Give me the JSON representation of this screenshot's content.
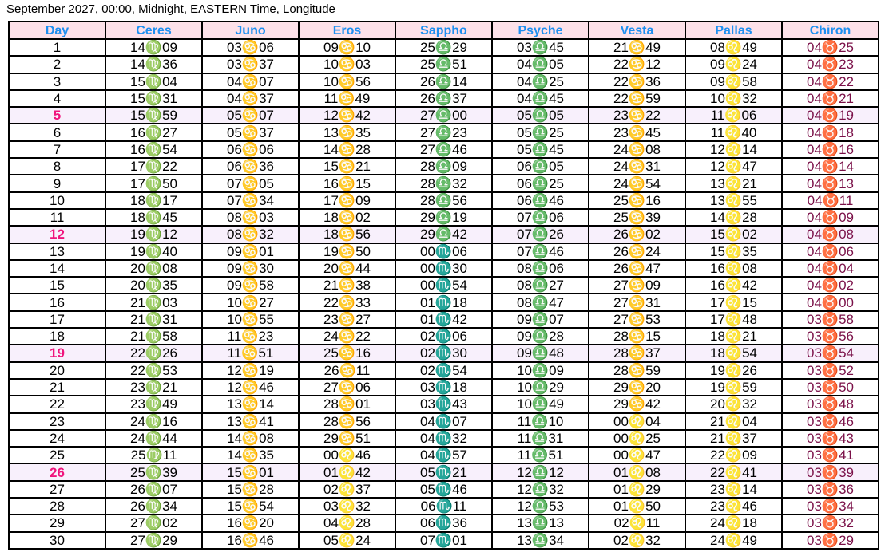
{
  "title": "September 2027, 00:00,  Midnight, EASTERN Time,  Longitude",
  "colors": {
    "header_bg": "#fde1e9",
    "header_text": "#1e8ff0",
    "highlight_row_bg": "#f8f0fc",
    "highlight_day": "#f0147c",
    "chiron_text": "#7a1048"
  },
  "table": {
    "headers": [
      "Day",
      "Ceres",
      "Juno",
      "Eros",
      "Sappho",
      "Psyche",
      "Vesta",
      "Pallas",
      "Chiron"
    ],
    "highlighted_days": [
      "5",
      "12",
      "19",
      "26"
    ],
    "rows": [
      [
        "1",
        "14♍09",
        "03♋06",
        "09♋10",
        "25♎29",
        "03♎45",
        "21♋49",
        "08♌49",
        "04♉25"
      ],
      [
        "2",
        "14♍36",
        "03♋37",
        "10♋03",
        "25♎51",
        "04♎05",
        "22♋12",
        "09♌24",
        "04♉23"
      ],
      [
        "3",
        "15♍04",
        "04♋07",
        "10♋56",
        "26♎14",
        "04♎25",
        "22♋36",
        "09♌58",
        "04♉22"
      ],
      [
        "4",
        "15♍31",
        "04♋37",
        "11♋49",
        "26♎37",
        "04♎45",
        "22♋59",
        "10♌32",
        "04♉21"
      ],
      [
        "5",
        "15♍59",
        "05♋07",
        "12♋42",
        "27♎00",
        "05♎05",
        "23♋22",
        "11♌06",
        "04♉19"
      ],
      [
        "6",
        "16♍27",
        "05♋37",
        "13♋35",
        "27♎23",
        "05♎25",
        "23♋45",
        "11♌40",
        "04♉18"
      ],
      [
        "7",
        "16♍54",
        "06♋06",
        "14♋28",
        "27♎46",
        "05♎45",
        "24♋08",
        "12♌14",
        "04♉16"
      ],
      [
        "8",
        "17♍22",
        "06♋36",
        "15♋21",
        "28♎09",
        "06♎05",
        "24♋31",
        "12♌47",
        "04♉14"
      ],
      [
        "9",
        "17♍50",
        "07♋05",
        "16♋15",
        "28♎32",
        "06♎25",
        "24♋54",
        "13♌21",
        "04♉13"
      ],
      [
        "10",
        "18♍17",
        "07♋34",
        "17♋09",
        "28♎56",
        "06♎46",
        "25♋16",
        "13♌55",
        "04♉11"
      ],
      [
        "11",
        "18♍45",
        "08♋03",
        "18♋02",
        "29♎19",
        "07♎06",
        "25♋39",
        "14♌28",
        "04♉09"
      ],
      [
        "12",
        "19♍12",
        "08♋32",
        "18♋56",
        "29♎42",
        "07♎26",
        "26♋02",
        "15♌02",
        "04♉08"
      ],
      [
        "13",
        "19♍40",
        "09♋01",
        "19♋50",
        "00♏06",
        "07♎46",
        "26♋24",
        "15♌35",
        "04♉06"
      ],
      [
        "14",
        "20♍08",
        "09♋30",
        "20♋44",
        "00♏30",
        "08♎06",
        "26♋47",
        "16♌08",
        "04♉04"
      ],
      [
        "15",
        "20♍35",
        "09♋58",
        "21♋38",
        "00♏54",
        "08♎27",
        "27♋09",
        "16♌42",
        "04♉02"
      ],
      [
        "16",
        "21♍03",
        "10♋27",
        "22♋33",
        "01♏18",
        "08♎47",
        "27♋31",
        "17♌15",
        "04♉00"
      ],
      [
        "17",
        "21♍31",
        "10♋55",
        "23♋27",
        "01♏42",
        "09♎07",
        "27♋53",
        "17♌48",
        "03♉58"
      ],
      [
        "18",
        "21♍58",
        "11♋23",
        "24♋22",
        "02♏06",
        "09♎28",
        "28♋15",
        "18♌21",
        "03♉56"
      ],
      [
        "19",
        "22♍26",
        "11♋51",
        "25♋16",
        "02♏30",
        "09♎48",
        "28♋37",
        "18♌54",
        "03♉54"
      ],
      [
        "20",
        "22♍53",
        "12♋19",
        "26♋11",
        "02♏54",
        "10♎09",
        "28♋59",
        "19♌26",
        "03♉52"
      ],
      [
        "21",
        "23♍21",
        "12♋46",
        "27♋06",
        "03♏18",
        "10♎29",
        "29♋20",
        "19♌59",
        "03♉50"
      ],
      [
        "22",
        "23♍49",
        "13♋14",
        "28♋01",
        "03♏43",
        "10♎49",
        "29♋42",
        "20♌32",
        "03♉48"
      ],
      [
        "23",
        "24♍16",
        "13♋41",
        "28♋56",
        "04♏07",
        "11♎10",
        "00♌04",
        "21♌04",
        "03♉46"
      ],
      [
        "24",
        "24♍44",
        "14♋08",
        "29♋51",
        "04♏32",
        "11♎31",
        "00♌25",
        "21♌37",
        "03♉43"
      ],
      [
        "25",
        "25♍11",
        "14♋35",
        "00♌46",
        "04♏57",
        "11♎51",
        "00♌47",
        "22♌09",
        "03♉41"
      ],
      [
        "26",
        "25♍39",
        "15♋01",
        "01♌42",
        "05♏21",
        "12♎12",
        "01♌08",
        "22♌41",
        "03♉39"
      ],
      [
        "27",
        "26♍07",
        "15♋28",
        "02♌37",
        "05♏46",
        "12♎32",
        "01♌29",
        "23♌14",
        "03♉36"
      ],
      [
        "28",
        "26♍34",
        "15♋54",
        "03♌32",
        "06♏11",
        "12♎53",
        "01♌50",
        "23♌46",
        "03♉34"
      ],
      [
        "29",
        "27♍02",
        "16♋20",
        "04♌28",
        "06♏36",
        "13♎13",
        "02♌11",
        "24♌18",
        "03♉32"
      ],
      [
        "30",
        "27♍29",
        "16♋46",
        "05♌24",
        "07♏01",
        "13♎34",
        "02♌32",
        "24♌49",
        "03♉29"
      ]
    ]
  }
}
